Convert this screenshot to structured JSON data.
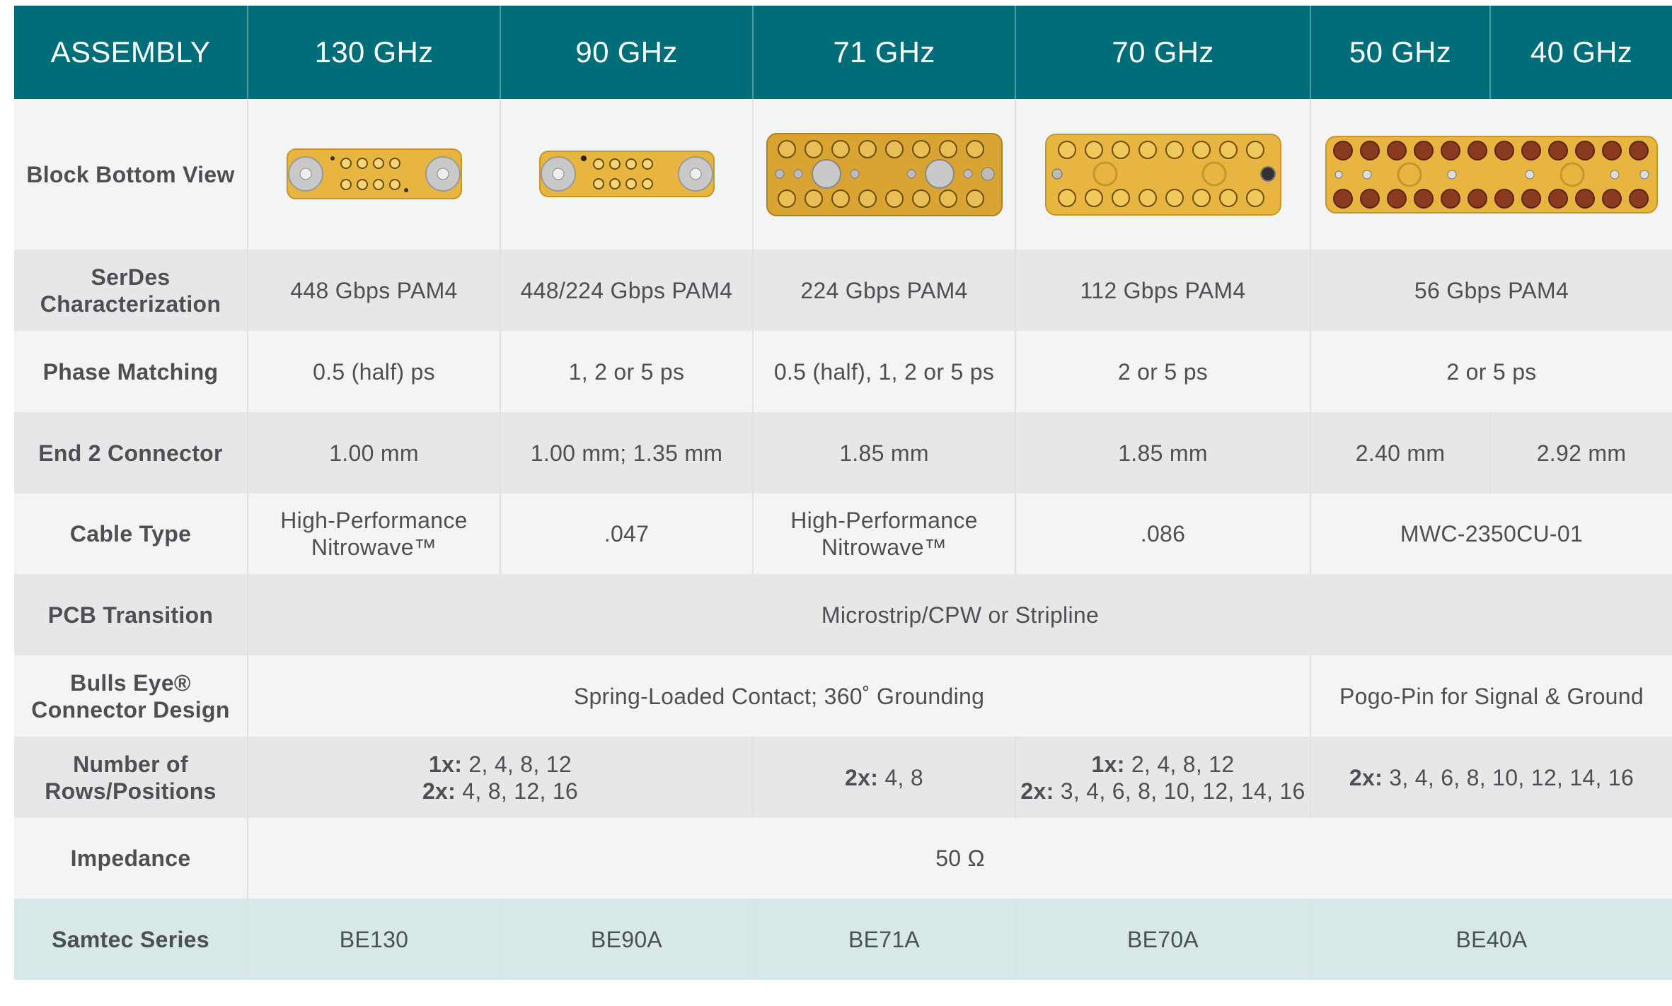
{
  "header": {
    "assembly": "ASSEMBLY",
    "cols": [
      "130 GHz",
      "90 GHz",
      "71 GHz",
      "70 GHz",
      "50 GHz",
      "40 GHz"
    ]
  },
  "rows": {
    "block_bottom_view": {
      "label": "Block Bottom View"
    },
    "serdes": {
      "label": "SerDes Characterization",
      "values": [
        "448 Gbps PAM4",
        "448/224 Gbps PAM4",
        "224 Gbps PAM4",
        "112 Gbps PAM4",
        "56 Gbps PAM4"
      ]
    },
    "phase": {
      "label": "Phase Matching",
      "values": [
        "0.5 (half) ps",
        "1, 2 or 5 ps",
        "0.5 (half), 1, 2 or 5 ps",
        "2 or 5 ps",
        "2 or 5 ps"
      ]
    },
    "end2": {
      "label": "End 2 Connector",
      "values": [
        "1.00 mm",
        "1.00 mm; 1.35 mm",
        "1.85 mm",
        "1.85 mm",
        "2.40 mm",
        "2.92 mm"
      ]
    },
    "cable": {
      "label": "Cable Type",
      "values": [
        "High-Performance Nitrowave™",
        ".047",
        "High-Performance Nitrowave™",
        ".086",
        "MWC-2350CU-01"
      ]
    },
    "pcb": {
      "label": "PCB Transition",
      "value": "Microstrip/CPW or Stripline"
    },
    "bullseye": {
      "label": "Bulls Eye® Connector Design",
      "values": [
        "Spring-Loaded Contact; 360˚ Grounding",
        "Pogo-Pin for Signal & Ground"
      ]
    },
    "rows_positions": {
      "label": "Number of Rows/Positions",
      "groups": [
        {
          "lines": [
            {
              "k": "1x:",
              "v": " 2, 4, 8, 12"
            },
            {
              "k": "2x:",
              "v": " 4, 8, 12, 16"
            }
          ]
        },
        {
          "lines": [
            {
              "k": "2x:",
              "v": " 4, 8"
            }
          ]
        },
        {
          "lines": [
            {
              "k": "1x:",
              "v": " 2, 4, 8, 12"
            },
            {
              "k": "2x:",
              "v": " 3, 4, 6, 8, 10, 12, 14, 16"
            }
          ]
        },
        {
          "lines": [
            {
              "k": "2x:",
              "v": " 3, 4, 6, 8, 10, 12, 14, 16"
            }
          ]
        }
      ]
    },
    "impedance": {
      "label": "Impedance",
      "value": "50 Ω"
    },
    "series": {
      "label": "Samtec Series",
      "values": [
        "BE130",
        "BE90A",
        "BE71A",
        "BE70A",
        "BE40A"
      ]
    }
  },
  "colors": {
    "header_bg": "#006e78",
    "gold": "#e8b640",
    "series_bg": "#d6e8e8"
  }
}
